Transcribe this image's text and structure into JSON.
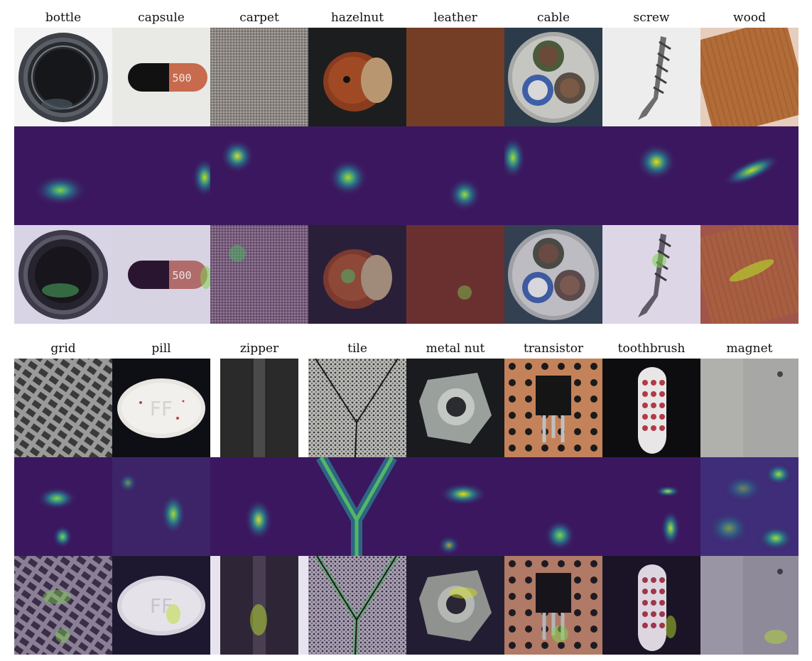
{
  "figure": {
    "blocks": [
      {
        "labels": [
          "bottle",
          "capsule",
          "carpet",
          "hazelnut",
          "leather",
          "cable",
          "screw",
          "wood"
        ],
        "rows": [
          "input",
          "heatmap",
          "overlay"
        ]
      },
      {
        "labels": [
          "grid",
          "pill",
          "zipper",
          "tile",
          "metal nut",
          "transistor",
          "toothbrush",
          "magnet"
        ],
        "rows": [
          "input",
          "heatmap",
          "overlay"
        ]
      }
    ]
  },
  "tiles": {
    "capsule_print": "500",
    "pill_print": "FF"
  },
  "heatmap_colors": {
    "background": "#3b1760",
    "mid": "#2a7a8c",
    "hot": "#7fd34e",
    "peak": "#fde725"
  }
}
